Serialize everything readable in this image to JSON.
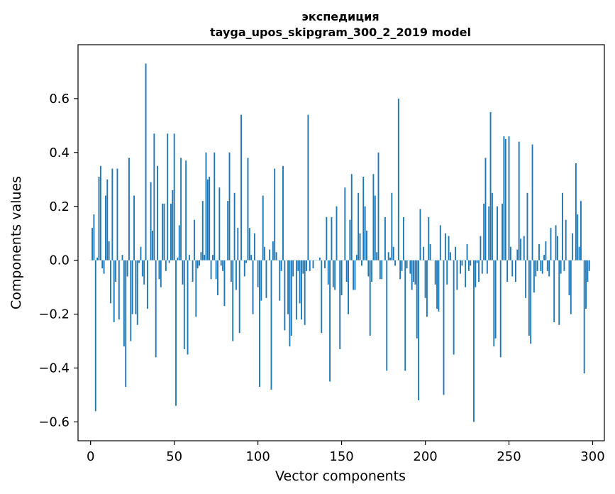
{
  "chart_data": {
    "type": "bar",
    "title": "экспедиция",
    "subtitle": "tayga_upos_skipgram_300_2_2019 model",
    "xlabel": "Vector components",
    "ylabel": "Components values",
    "xlim": [
      -7.5,
      307
    ],
    "ylim": [
      -0.67,
      0.8
    ],
    "xticks": [
      0,
      50,
      100,
      150,
      200,
      250,
      300
    ],
    "xtick_labels": [
      "0",
      "50",
      "100",
      "150",
      "200",
      "250",
      "300"
    ],
    "yticks": [
      -0.6,
      -0.4,
      -0.2,
      0.0,
      0.2,
      0.4,
      0.6
    ],
    "ytick_labels": [
      "−0.6",
      "−0.4",
      "−0.2",
      "0.0",
      "0.2",
      "0.4",
      "0.6"
    ],
    "bar_color": "#1f77b4",
    "values": [
      0.0,
      0.12,
      0.17,
      -0.56,
      0.01,
      0.31,
      0.35,
      -0.03,
      -0.05,
      0.24,
      0.3,
      0.07,
      -0.16,
      0.34,
      -0.23,
      -0.08,
      0.34,
      -0.22,
      0.0,
      0.02,
      -0.32,
      -0.47,
      -0.06,
      0.38,
      -0.3,
      -0.2,
      0.24,
      -0.2,
      -0.24,
      -0.01,
      0.05,
      -0.06,
      -0.09,
      0.73,
      -0.18,
      0.0,
      0.29,
      0.11,
      0.47,
      -0.36,
      0.35,
      -0.07,
      -0.1,
      0.21,
      0.21,
      -0.04,
      0.47,
      -0.01,
      0.21,
      0.26,
      0.47,
      -0.54,
      0.01,
      0.13,
      0.38,
      -0.09,
      -0.33,
      0.37,
      -0.35,
      0.02,
      0.0,
      -0.08,
      0.15,
      -0.21,
      -0.03,
      -0.02,
      0.03,
      0.22,
      0.02,
      0.4,
      0.3,
      0.31,
      -0.07,
      0.02,
      0.4,
      -0.07,
      -0.13,
      0.27,
      -0.02,
      -0.04,
      -0.17,
      0.0,
      0.22,
      0.4,
      -0.08,
      -0.3,
      0.25,
      -0.11,
      0.12,
      -0.27,
      0.54,
      0.0,
      -0.06,
      -0.01,
      0.38,
      0.12,
      0.02,
      -0.2,
      0.1,
      0.0,
      -0.1,
      -0.47,
      -0.15,
      0.24,
      0.05,
      -0.14,
      0.0,
      0.04,
      -0.48,
      0.07,
      0.34,
      0.03,
      0.0,
      -0.15,
      -0.04,
      0.35,
      -0.26,
      0.0,
      -0.2,
      -0.32,
      -0.28,
      -0.06,
      0.0,
      -0.22,
      -0.04,
      -0.16,
      -0.22,
      -0.05,
      -0.24,
      -0.04,
      0.54,
      -0.04,
      0.0,
      -0.03,
      0.0,
      0.0,
      0.0,
      0.01,
      -0.27,
      0.0,
      -0.03,
      0.16,
      -0.09,
      -0.45,
      0.16,
      -0.1,
      -0.11,
      0.2,
      0.0,
      -0.33,
      -0.13,
      0.0,
      0.27,
      -0.08,
      -0.2,
      0.15,
      0.32,
      -0.11,
      -0.11,
      0.02,
      0.25,
      0.1,
      -0.02,
      0.31,
      0.2,
      0.11,
      -0.06,
      -0.28,
      -0.08,
      0.32,
      0.24,
      0.03,
      0.4,
      -0.07,
      -0.07,
      0.0,
      0.16,
      -0.41,
      0.03,
      0.01,
      0.25,
      0.05,
      -0.02,
      0.0,
      0.6,
      -0.07,
      -0.04,
      0.16,
      -0.41,
      -0.03,
      0.0,
      -0.05,
      -0.11,
      -0.08,
      -0.09,
      -0.29,
      -0.52,
      0.19,
      0.0,
      0.05,
      -0.14,
      -0.21,
      0.16,
      0.06,
      0.0,
      0.0,
      -0.09,
      -0.18,
      -0.19,
      0.13,
      0.0,
      -0.5,
      0.1,
      -0.09,
      0.09,
      0.03,
      0.0,
      -0.35,
      0.05,
      -0.11,
      0.0,
      -0.05,
      -0.02,
      0.0,
      -0.1,
      0.06,
      -0.04,
      -0.02,
      0.0,
      -0.6,
      -0.1,
      -0.01,
      -0.08,
      0.09,
      -0.05,
      0.21,
      0.38,
      -0.05,
      0.2,
      0.55,
      0.25,
      -0.32,
      -0.29,
      0.2,
      0.0,
      -0.36,
      0.21,
      0.46,
      0.45,
      -0.08,
      0.46,
      0.05,
      -0.06,
      0.0,
      -0.08,
      0.04,
      0.44,
      0.08,
      0.0,
      0.09,
      -0.14,
      0.25,
      -0.28,
      -0.31,
      0.43,
      -0.12,
      -0.06,
      -0.04,
      0.06,
      -0.04,
      -0.05,
      0.02,
      0.07,
      -0.04,
      -0.06,
      0.12,
      0.0,
      -0.23,
      0.13,
      0.09,
      -0.24,
      -0.05,
      0.25,
      -0.04,
      0.15,
      0.0,
      -0.13,
      -0.2,
      0.1,
      0.0,
      0.36,
      0.17,
      0.05,
      0.22,
      0.0,
      -0.42,
      -0.18,
      -0.08,
      -0.04
    ]
  }
}
